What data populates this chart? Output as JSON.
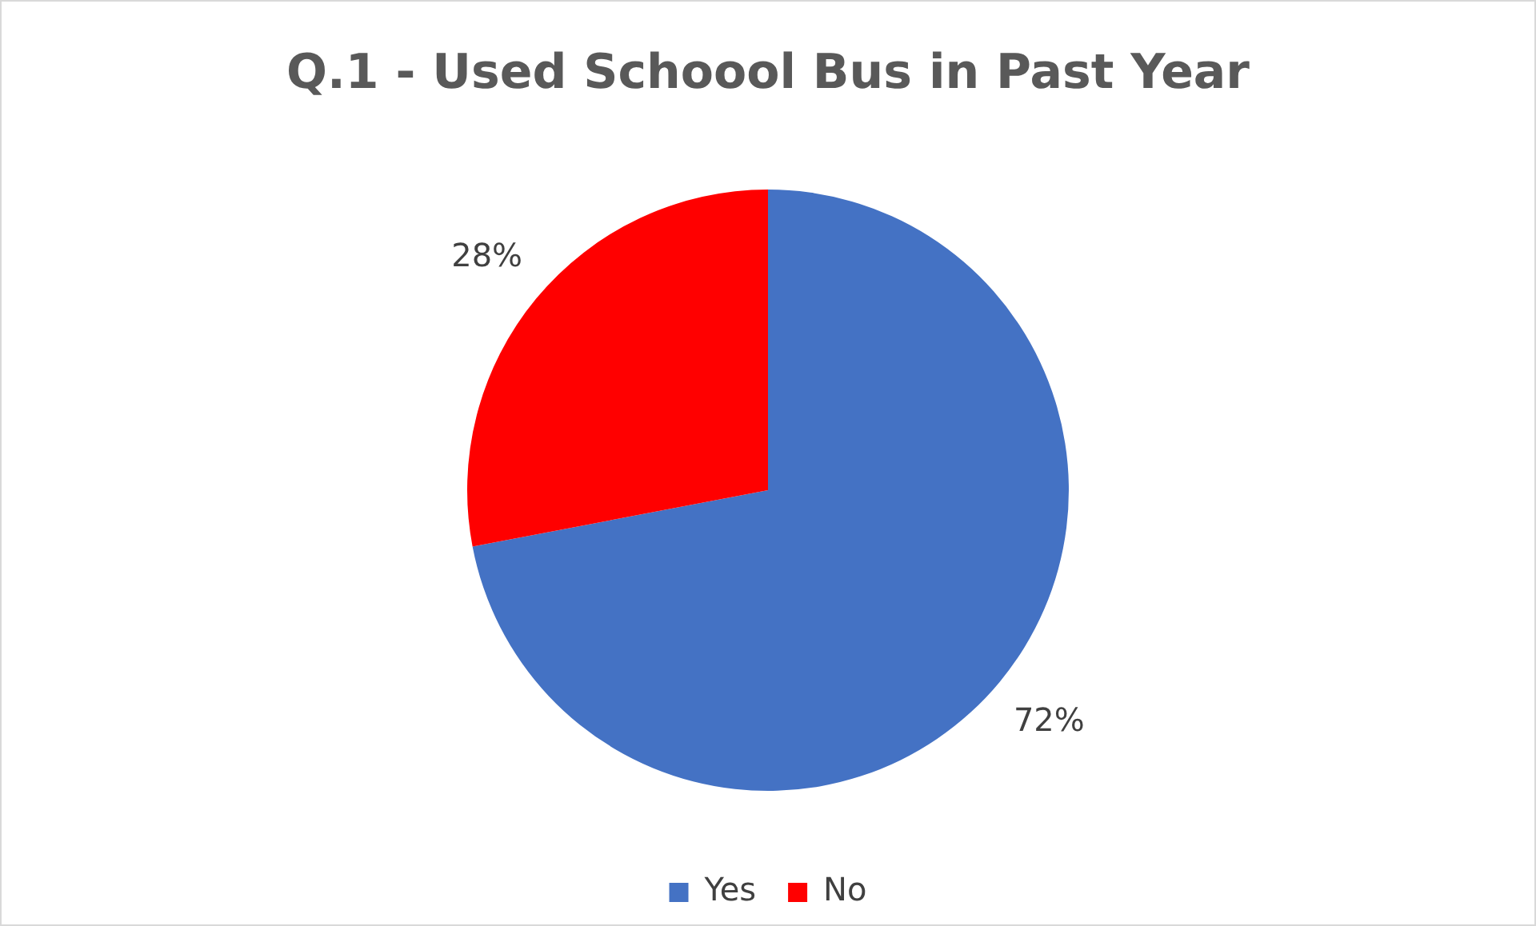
{
  "chart_data": {
    "type": "pie",
    "title": "Q.1 - Used Schoool Bus in Past Year",
    "categories": [
      "Yes",
      "No"
    ],
    "values": [
      72,
      28
    ],
    "colors": [
      "#4472c4",
      "#ff0000"
    ],
    "value_labels": [
      "72%",
      "28%"
    ],
    "legend": "bottom"
  }
}
